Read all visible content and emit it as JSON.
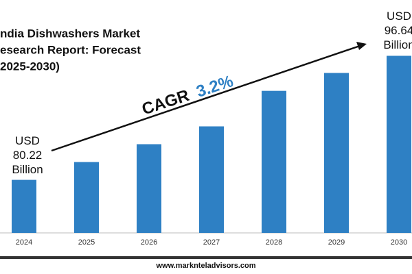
{
  "chart_data": {
    "type": "bar",
    "title": [
      "ndia Dishwashers Market",
      "esearch Report: Forecast",
      "2025-2030)"
    ],
    "categories": [
      "2024",
      "2025",
      "2026",
      "2027",
      "2028",
      "2029",
      "2030"
    ],
    "values": [
      80.22,
      82.58,
      84.94,
      87.3,
      92.0,
      94.37,
      96.64
    ],
    "value_labels": [
      "USD 80.22 Billion",
      null,
      null,
      null,
      null,
      null,
      "USD 96.64 Billion"
    ],
    "color": "#2e80c4",
    "ylim": [
      73.2,
      100.4
    ],
    "cagr_label": "CAGR",
    "cagr": "3.2%",
    "footer": "www.marknteladvisors.com"
  }
}
